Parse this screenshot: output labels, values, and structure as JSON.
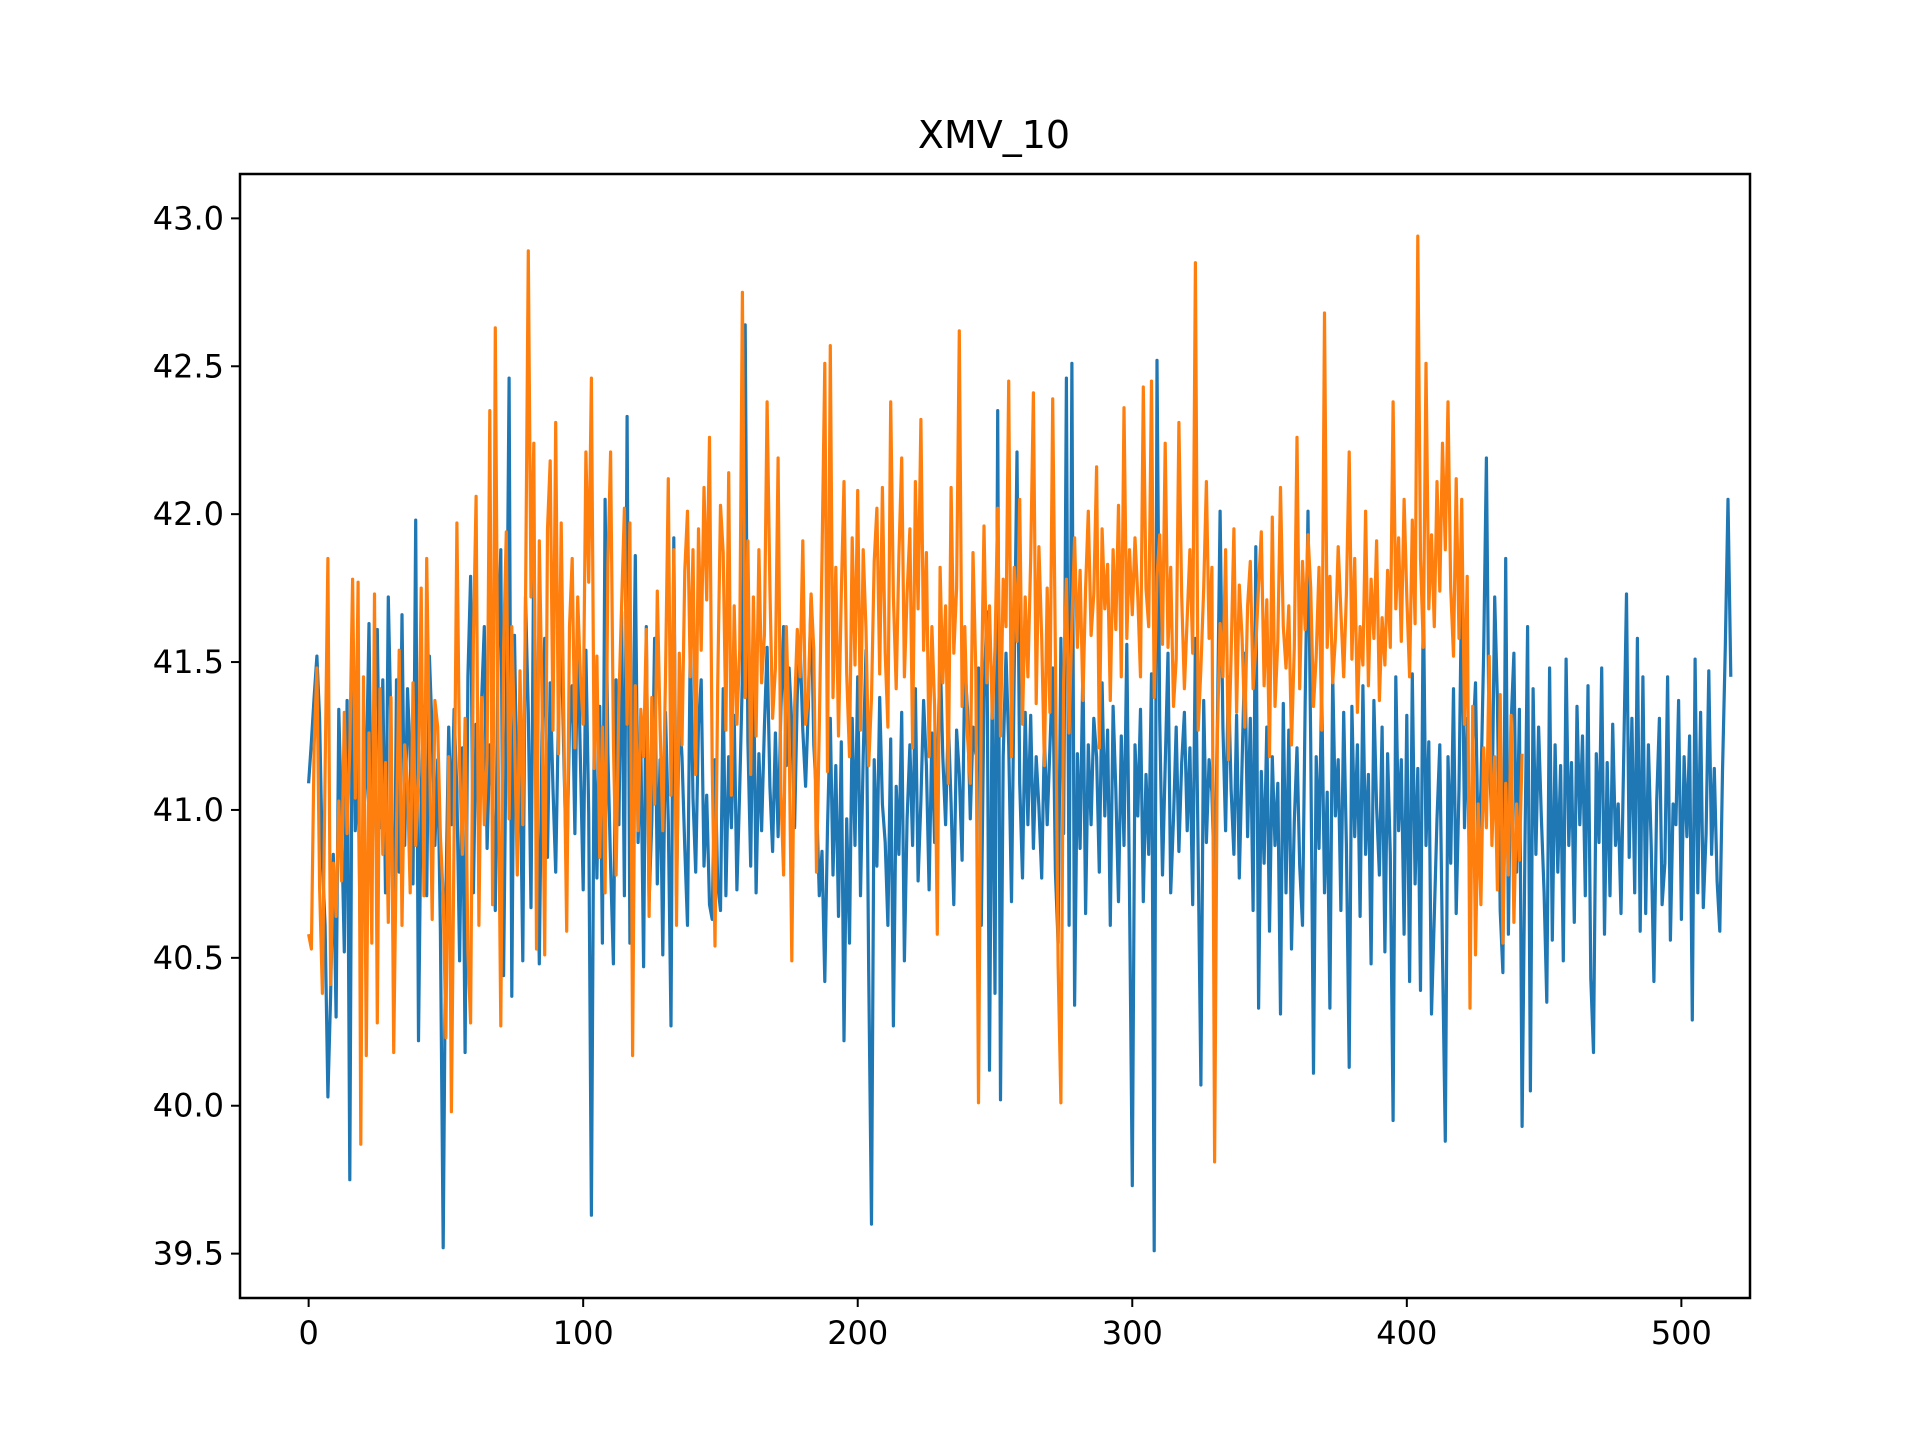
{
  "chart_data": {
    "type": "line",
    "title": "XMV_10",
    "xlabel": "",
    "ylabel": "",
    "xlim": [
      -25,
      525
    ],
    "ylim": [
      39.35,
      43.15
    ],
    "x_ticks": [
      0,
      100,
      200,
      300,
      400,
      500
    ],
    "y_ticks": [
      39.5,
      40.0,
      40.5,
      41.0,
      41.5,
      42.0,
      42.5,
      43.0
    ],
    "x_tick_labels": [
      "0",
      "100",
      "200",
      "300",
      "400",
      "500"
    ],
    "y_tick_labels": [
      "39.5",
      "40.0",
      "40.5",
      "41.0",
      "41.5",
      "42.0",
      "42.5",
      "43.0"
    ],
    "grid": false,
    "legend": false,
    "series": [
      {
        "color": "#1f77b4",
        "x_start": 0,
        "x_step": 1,
        "values": [
          41.09,
          41.23,
          41.38,
          41.52,
          41.31,
          40.82,
          40.61,
          40.03,
          40.37,
          40.85,
          40.3,
          41.34,
          40.95,
          40.52,
          41.37,
          39.75,
          41.68,
          40.93,
          41.16,
          40.4,
          40.98,
          41.12,
          41.63,
          40.78,
          41.28,
          41.61,
          40.94,
          41.44,
          40.72,
          41.72,
          41.28,
          40.35,
          41.44,
          40.79,
          41.66,
          40.88,
          41.41,
          41.18,
          40.75,
          41.98,
          40.22,
          41.06,
          41.35,
          40.71,
          41.52,
          41.26,
          40.88,
          41.17,
          40.59,
          39.52,
          40.71,
          41.28,
          40.95,
          41.34,
          41.06,
          40.49,
          41.21,
          40.18,
          41.45,
          41.79,
          40.72,
          41.29,
          40.93,
          41.37,
          41.62,
          40.87,
          41.22,
          41.05,
          40.66,
          41.54,
          41.88,
          40.44,
          41.31,
          42.46,
          40.37,
          41.59,
          40.98,
          41.21,
          40.49,
          41.72,
          41.33,
          40.67,
          41.91,
          41.14,
          40.48,
          41.26,
          41.58,
          40.84,
          41.43,
          41.07,
          40.79,
          41.33,
          41.61,
          41.15,
          40.79,
          41.29,
          41.42,
          40.92,
          41.61,
          41.17,
          40.73,
          41.54,
          40.99,
          39.63,
          41.28,
          40.77,
          41.35,
          40.55,
          42.05,
          41.19,
          40.81,
          40.48,
          41.44,
          40.95,
          41.67,
          40.71,
          42.33,
          40.55,
          41.09,
          41.86,
          40.89,
          41.23,
          40.47,
          41.62,
          40.69,
          40.96,
          41.58,
          40.75,
          41.17,
          40.51,
          41.33,
          40.96,
          40.27,
          41.92,
          40.71,
          41.35,
          41.18,
          40.87,
          40.61,
          41.58,
          41.04,
          40.79,
          41.29,
          41.44,
          40.81,
          41.05,
          40.68,
          40.63,
          41.17,
          40.75,
          40.66,
          41.41,
          40.71,
          41.18,
          40.94,
          41.32,
          40.73,
          41.07,
          41.45,
          42.64,
          41.23,
          40.81,
          41.52,
          40.72,
          41.19,
          40.93,
          41.28,
          41.55,
          41.08,
          40.86,
          41.26,
          40.91,
          41.34,
          41.62,
          41.15,
          41.48,
          41.29,
          40.94,
          41.39,
          41.56,
          41.27,
          41.08,
          41.35,
          41.72,
          41.22,
          41.04,
          40.71,
          40.86,
          40.42,
          40.94,
          41.31,
          40.78,
          41.15,
          40.64,
          41.23,
          40.22,
          40.97,
          40.55,
          41.31,
          40.88,
          41.45,
          40.71,
          41.18,
          41.54,
          40.45,
          39.6,
          41.17,
          40.81,
          41.38,
          41.02,
          40.89,
          40.61,
          41.24,
          40.27,
          41.08,
          40.85,
          41.33,
          40.49,
          40.97,
          41.22,
          40.88,
          41.41,
          40.76,
          41.03,
          41.37,
          41.15,
          40.73,
          41.26,
          40.89,
          41.11,
          41.54,
          41.18,
          40.95,
          41.31,
          41.02,
          40.68,
          41.27,
          41.12,
          40.83,
          41.49,
          41.34,
          40.97,
          41.28,
          41.19,
          41.48,
          40.61,
          41.38,
          41.67,
          40.12,
          41.48,
          40.38,
          42.35,
          40.02,
          41.18,
          41.53,
          41.22,
          40.69,
          41.46,
          42.21,
          41.09,
          40.77,
          41.33,
          40.95,
          41.32,
          40.87,
          41.18,
          41.01,
          40.77,
          41.25,
          40.95,
          41.21,
          41.48,
          40.79,
          40.55,
          41.58,
          40.92,
          42.46,
          40.61,
          42.51,
          40.34,
          41.19,
          40.87,
          41.49,
          40.65,
          41.22,
          40.95,
          41.31,
          41.18,
          40.79,
          41.43,
          40.98,
          41.27,
          40.61,
          41.35,
          41.07,
          40.69,
          41.25,
          40.88,
          41.56,
          40.72,
          39.73,
          41.22,
          40.98,
          41.34,
          40.69,
          41.12,
          40.85,
          41.46,
          39.51,
          42.52,
          41.31,
          40.78,
          41.15,
          41.53,
          40.72,
          40.97,
          41.28,
          40.86,
          41.16,
          41.33,
          40.93,
          41.21,
          40.68,
          41.58,
          40.84,
          40.07,
          41.37,
          40.89,
          41.17,
          41.06,
          40.72,
          41.29,
          42.01,
          41.28,
          40.93,
          41.45,
          41.07,
          40.85,
          41.32,
          40.77,
          41.16,
          41.53,
          40.91,
          41.31,
          40.66,
          41.89,
          40.33,
          41.13,
          40.82,
          41.28,
          40.59,
          41.18,
          40.88,
          41.09,
          40.31,
          41.36,
          40.72,
          41.27,
          40.53,
          40.96,
          41.21,
          40.81,
          40.61,
          41.37,
          42.01,
          41.23,
          40.11,
          41.18,
          40.87,
          41.41,
          40.72,
          41.06,
          40.33,
          41.46,
          40.98,
          41.17,
          40.66,
          41.33,
          40.88,
          40.13,
          41.35,
          40.91,
          41.22,
          40.64,
          41.42,
          40.85,
          41.12,
          40.48,
          41.37,
          41.01,
          40.78,
          41.28,
          40.52,
          41.19,
          40.85,
          39.95,
          41.45,
          40.93,
          41.17,
          40.58,
          41.32,
          40.42,
          41.46,
          40.75,
          41.14,
          40.39,
          41.75,
          40.88,
          41.23,
          40.31,
          40.64,
          40.97,
          41.22,
          40.51,
          39.88,
          41.18,
          40.82,
          41.41,
          40.65,
          41.07,
          41.78,
          40.94,
          41.31,
          40.67,
          41.22,
          41.43,
          40.85,
          41.07,
          41.54,
          42.19,
          41.18,
          40.95,
          41.72,
          41.37,
          40.66,
          40.45,
          41.85,
          40.58,
          41.29,
          41.53,
          40.79,
          41.34,
          39.93,
          40.86,
          41.62,
          40.05,
          41.41,
          40.85,
          41.28,
          40.98,
          40.72,
          40.35,
          41.48,
          40.56,
          41.22,
          40.79,
          41.15,
          40.49,
          41.51,
          40.88,
          41.16,
          40.62,
          41.35,
          40.95,
          41.25,
          40.71,
          41.42,
          40.43,
          40.18,
          41.19,
          40.89,
          41.48,
          40.58,
          41.16,
          40.71,
          41.29,
          40.88,
          41.02,
          40.65,
          41.18,
          41.73,
          40.84,
          41.31,
          40.72,
          41.58,
          40.59,
          41.45,
          40.65,
          41.22,
          40.88,
          40.42,
          41.03,
          41.31,
          40.68,
          40.82,
          41.45,
          40.56,
          41.02,
          40.95,
          41.37,
          40.63,
          41.18,
          40.91,
          41.25,
          40.29,
          41.51,
          40.72,
          41.33,
          40.67,
          40.92,
          41.47,
          40.85,
          41.14,
          40.76,
          40.59,
          41.13,
          41.55,
          42.05,
          41.45
        ]
      },
      {
        "color": "#ff7f0e",
        "x_start": 0,
        "x_step": 1,
        "values": [
          40.58,
          40.53,
          41.21,
          41.48,
          40.74,
          40.38,
          41.13,
          41.85,
          40.41,
          40.82,
          40.64,
          41.03,
          40.76,
          41.33,
          40.92,
          41.21,
          41.78,
          41.04,
          41.77,
          39.87,
          41.45,
          40.17,
          41.26,
          40.55,
          41.73,
          40.28,
          41.41,
          40.85,
          41.16,
          40.62,
          41.38,
          40.18,
          40.93,
          41.54,
          40.61,
          41.22,
          41.09,
          40.72,
          41.43,
          40.88,
          41.12,
          41.75,
          40.71,
          41.85,
          41.22,
          40.63,
          41.37,
          41.28,
          40.91,
          40.71,
          40.23,
          41.18,
          39.98,
          40.92,
          41.97,
          41.15,
          40.85,
          41.31,
          40.52,
          40.28,
          41.57,
          42.06,
          40.61,
          41.38,
          40.95,
          41.18,
          42.35,
          40.68,
          42.63,
          41.22,
          40.27,
          41.55,
          41.94,
          40.97,
          41.62,
          41.26,
          40.78,
          41.47,
          40.95,
          41.69,
          42.89,
          41.72,
          42.24,
          40.53,
          41.91,
          41.38,
          40.51,
          41.95,
          42.18,
          41.27,
          42.31,
          41.19,
          41.97,
          41.25,
          40.59,
          41.62,
          41.85,
          41.21,
          41.72,
          41.45,
          41.29,
          42.21,
          41.77,
          42.46,
          41.14,
          41.52,
          40.84,
          41.28,
          40.72,
          41.83,
          42.21,
          41.23,
          40.78,
          41.37,
          41.69,
          42.02,
          41.29,
          41.97,
          40.17,
          41.42,
          40.93,
          41.34,
          41.18,
          41.61,
          40.64,
          41.38,
          41.02,
          41.74,
          41.28,
          40.93,
          41.45,
          42.12,
          41.05,
          41.88,
          40.61,
          41.53,
          41.22,
          41.81,
          42.01,
          41.45,
          41.88,
          41.12,
          41.95,
          41.54,
          42.09,
          41.71,
          42.26,
          41.15,
          40.54,
          41.42,
          42.03,
          41.87,
          41.27,
          42.14,
          41.05,
          41.69,
          41.29,
          41.54,
          42.75,
          41.38,
          41.91,
          41.12,
          41.72,
          41.25,
          41.88,
          41.43,
          41.59,
          42.38,
          41.75,
          41.31,
          41.48,
          42.19,
          41.06,
          40.78,
          41.62,
          41.27,
          40.49,
          41.35,
          41.61,
          41.45,
          41.91,
          41.29,
          41.38,
          41.73,
          41.54,
          40.79,
          41.28,
          41.85,
          42.51,
          41.13,
          42.57,
          41.38,
          41.82,
          41.25,
          41.73,
          42.11,
          41.46,
          41.18,
          41.92,
          41.49,
          42.08,
          41.27,
          41.88,
          41.61,
          41.15,
          41.38,
          41.84,
          42.02,
          41.46,
          42.09,
          41.53,
          41.28,
          42.38,
          41.72,
          41.41,
          41.86,
          42.19,
          41.45,
          41.73,
          41.95,
          41.21,
          42.11,
          41.68,
          42.32,
          41.54,
          41.87,
          41.18,
          41.62,
          41.35,
          40.58,
          41.82,
          41.43,
          41.69,
          41.09,
          42.09,
          41.53,
          41.75,
          42.62,
          41.35,
          41.62,
          41.25,
          41.09,
          41.87,
          41.47,
          40.01,
          41.38,
          41.96,
          41.43,
          41.69,
          41.31,
          41.55,
          42.02,
          41.25,
          41.78,
          41.62,
          42.45,
          41.18,
          41.82,
          41.57,
          42.05,
          41.29,
          41.72,
          41.45,
          41.85,
          42.41,
          41.36,
          41.89,
          41.58,
          41.15,
          41.75,
          41.33,
          42.39,
          41.52,
          40.48,
          40.01,
          41.43,
          41.78,
          41.26,
          41.63,
          41.92,
          41.55,
          41.81,
          41.37,
          41.75,
          42.01,
          41.59,
          41.73,
          42.16,
          41.21,
          41.95,
          41.68,
          41.83,
          41.37,
          41.88,
          41.61,
          42.03,
          41.45,
          42.36,
          41.58,
          41.88,
          41.66,
          41.92,
          41.72,
          41.45,
          42.43,
          41.75,
          41.62,
          42.45,
          41.38,
          41.79,
          41.93,
          41.56,
          42.24,
          41.55,
          41.82,
          41.35,
          41.51,
          42.31,
          41.72,
          41.41,
          41.65,
          41.88,
          41.53,
          42.85,
          41.27,
          41.48,
          41.75,
          42.11,
          41.58,
          41.82,
          39.81,
          41.26,
          41.63,
          41.45,
          41.88,
          41.17,
          41.52,
          41.95,
          41.33,
          41.76,
          41.58,
          41.28,
          41.69,
          41.84,
          41.41,
          41.55,
          41.76,
          41.94,
          41.42,
          41.71,
          41.18,
          41.99,
          41.35,
          41.57,
          42.09,
          41.62,
          41.48,
          41.69,
          41.22,
          41.55,
          42.26,
          41.41,
          41.84,
          41.61,
          41.93,
          41.75,
          41.35,
          41.52,
          41.82,
          41.27,
          42.68,
          41.55,
          41.79,
          41.43,
          41.58,
          41.89,
          41.67,
          41.45,
          41.73,
          42.21,
          41.51,
          41.85,
          41.33,
          41.62,
          41.49,
          42.01,
          41.42,
          41.78,
          41.58,
          41.91,
          41.37,
          41.65,
          41.49,
          41.81,
          41.55,
          42.38,
          41.68,
          41.92,
          41.57,
          42.05,
          41.72,
          41.45,
          41.98,
          41.63,
          42.94,
          41.85,
          41.55,
          42.51,
          41.68,
          41.93,
          41.62,
          42.11,
          41.74,
          42.24,
          41.88,
          42.38,
          41.75,
          41.52,
          42.12,
          41.58,
          42.05,
          41.29,
          41.79,
          40.33,
          41.35,
          40.51,
          41.02,
          40.68,
          41.21,
          40.94,
          41.52,
          40.88,
          41.18,
          40.73,
          41.39,
          40.55,
          41.09,
          40.78,
          41.32,
          40.62,
          41.02,
          40.83,
          41.19
        ]
      }
    ]
  }
}
